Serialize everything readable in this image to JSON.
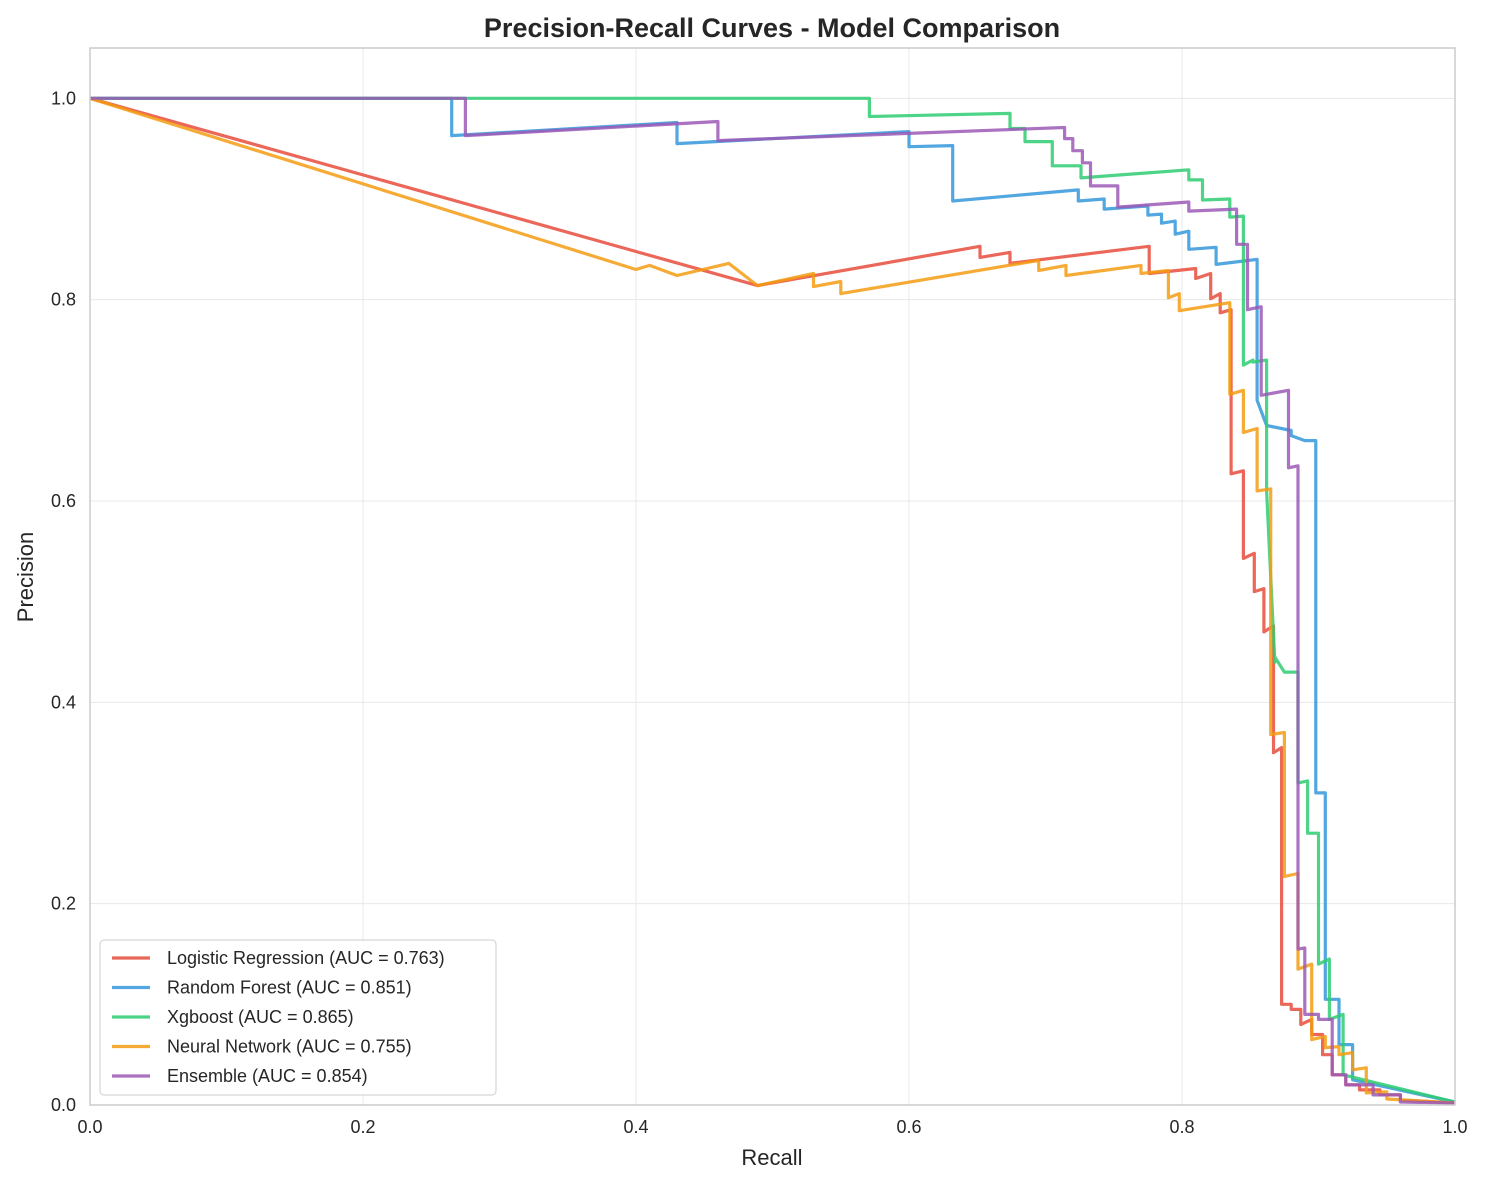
{
  "chart_data": {
    "type": "line",
    "title": "Precision-Recall Curves - Model Comparison",
    "xlabel": "Recall",
    "ylabel": "Precision",
    "xlim": [
      0,
      1
    ],
    "ylim": [
      0,
      1.05
    ],
    "xticks": [
      "0.0",
      "0.2",
      "0.4",
      "0.6",
      "0.8",
      "1.0"
    ],
    "yticks": [
      "0.0",
      "0.2",
      "0.4",
      "0.6",
      "0.8",
      "1.0"
    ],
    "xtick_values": [
      0,
      0.2,
      0.4,
      0.6,
      0.8,
      1.0
    ],
    "ytick_values": [
      0,
      0.2,
      0.4,
      0.6,
      0.8,
      1.0
    ],
    "grid": true,
    "legend_position": "lower-left",
    "series": [
      {
        "name": "Logistic Regression (AUC = 0.763)",
        "color": "#e74c3c",
        "x": [
          0,
          0.489,
          0.652,
          0.652,
          0.674,
          0.674,
          0.776,
          0.776,
          0.81,
          0.81,
          0.821,
          0.821,
          0.828,
          0.828,
          0.836,
          0.836,
          0.845,
          0.845,
          0.853,
          0.853,
          0.86,
          0.86,
          0.867,
          0.867,
          0.873,
          0.873,
          0.88,
          0.88,
          0.887,
          0.887,
          0.895,
          0.895,
          0.903,
          0.903,
          0.91,
          0.91,
          0.92,
          0.92,
          0.93,
          0.93,
          0.945,
          0.945,
          0.96,
          0.96,
          1.0
        ],
        "y": [
          1.0,
          0.814,
          0.853,
          0.842,
          0.847,
          0.836,
          0.853,
          0.826,
          0.831,
          0.821,
          0.826,
          0.801,
          0.806,
          0.787,
          0.79,
          0.627,
          0.63,
          0.543,
          0.548,
          0.51,
          0.513,
          0.47,
          0.476,
          0.35,
          0.355,
          0.1,
          0.1,
          0.095,
          0.095,
          0.08,
          0.085,
          0.07,
          0.07,
          0.05,
          0.05,
          0.03,
          0.03,
          0.02,
          0.02,
          0.015,
          0.015,
          0.01,
          0.01,
          0.005,
          0.002
        ]
      },
      {
        "name": "Random Forest (AUC = 0.851)",
        "color": "#3498db",
        "x": [
          0,
          0.265,
          0.265,
          0.43,
          0.43,
          0.6,
          0.6,
          0.632,
          0.632,
          0.724,
          0.724,
          0.743,
          0.743,
          0.775,
          0.775,
          0.785,
          0.785,
          0.795,
          0.795,
          0.805,
          0.805,
          0.825,
          0.825,
          0.855,
          0.855,
          0.862,
          0.862,
          0.88,
          0.88,
          0.89,
          0.89,
          0.898,
          0.898,
          0.905,
          0.905,
          0.915,
          0.915,
          0.925,
          0.925,
          1.0
        ],
        "y": [
          1.0,
          1.0,
          0.963,
          0.976,
          0.955,
          0.967,
          0.952,
          0.953,
          0.898,
          0.909,
          0.898,
          0.9,
          0.89,
          0.893,
          0.884,
          0.885,
          0.876,
          0.878,
          0.865,
          0.868,
          0.85,
          0.852,
          0.835,
          0.84,
          0.7,
          0.675,
          0.675,
          0.67,
          0.665,
          0.66,
          0.66,
          0.66,
          0.31,
          0.31,
          0.105,
          0.105,
          0.06,
          0.06,
          0.025,
          0.003
        ]
      },
      {
        "name": "Xgboost (AUC = 0.865)",
        "color": "#2ecc71",
        "x": [
          0,
          0.571,
          0.571,
          0.674,
          0.674,
          0.685,
          0.685,
          0.705,
          0.705,
          0.726,
          0.726,
          0.805,
          0.805,
          0.815,
          0.815,
          0.835,
          0.835,
          0.845,
          0.845,
          0.852,
          0.852,
          0.862,
          0.862,
          0.868,
          0.868,
          0.875,
          0.875,
          0.885,
          0.885,
          0.892,
          0.892,
          0.9,
          0.9,
          0.908,
          0.908,
          0.918,
          0.918,
          1.0
        ],
        "y": [
          1.0,
          1.0,
          0.982,
          0.985,
          0.97,
          0.97,
          0.957,
          0.957,
          0.933,
          0.933,
          0.921,
          0.929,
          0.919,
          0.919,
          0.899,
          0.9,
          0.882,
          0.883,
          0.735,
          0.74,
          0.738,
          0.74,
          0.61,
          0.44,
          0.445,
          0.43,
          0.43,
          0.43,
          0.32,
          0.322,
          0.27,
          0.27,
          0.14,
          0.145,
          0.085,
          0.09,
          0.03,
          0.003
        ]
      },
      {
        "name": "Neural Network (AUC = 0.755)",
        "color": "#f39c12",
        "x": [
          0,
          0.4,
          0.41,
          0.43,
          0.468,
          0.489,
          0.53,
          0.53,
          0.55,
          0.55,
          0.695,
          0.695,
          0.715,
          0.715,
          0.77,
          0.77,
          0.79,
          0.79,
          0.798,
          0.798,
          0.835,
          0.835,
          0.845,
          0.845,
          0.855,
          0.855,
          0.865,
          0.865,
          0.875,
          0.875,
          0.885,
          0.885,
          0.895,
          0.895,
          0.905,
          0.905,
          0.915,
          0.915,
          0.925,
          0.925,
          0.935,
          0.935,
          0.95,
          0.95,
          1.0
        ],
        "y": [
          1.0,
          0.83,
          0.834,
          0.824,
          0.836,
          0.814,
          0.826,
          0.813,
          0.818,
          0.806,
          0.839,
          0.829,
          0.834,
          0.824,
          0.834,
          0.826,
          0.829,
          0.802,
          0.806,
          0.789,
          0.797,
          0.706,
          0.71,
          0.668,
          0.672,
          0.61,
          0.612,
          0.368,
          0.37,
          0.227,
          0.23,
          0.135,
          0.14,
          0.065,
          0.068,
          0.057,
          0.058,
          0.05,
          0.052,
          0.035,
          0.037,
          0.012,
          0.013,
          0.006,
          0.002
        ]
      },
      {
        "name": "Ensemble (AUC = 0.854)",
        "color": "#9b59b6",
        "x": [
          0,
          0.275,
          0.275,
          0.46,
          0.46,
          0.714,
          0.714,
          0.72,
          0.72,
          0.727,
          0.727,
          0.733,
          0.733,
          0.753,
          0.753,
          0.805,
          0.805,
          0.84,
          0.84,
          0.848,
          0.848,
          0.858,
          0.858,
          0.878,
          0.878,
          0.885,
          0.885,
          0.89,
          0.89,
          0.9,
          0.9,
          0.91,
          0.91,
          0.92,
          0.92,
          0.94,
          0.94,
          0.96,
          0.96,
          1.0
        ],
        "y": [
          1.0,
          1.0,
          0.963,
          0.977,
          0.958,
          0.971,
          0.96,
          0.96,
          0.948,
          0.948,
          0.936,
          0.936,
          0.913,
          0.913,
          0.892,
          0.897,
          0.888,
          0.89,
          0.855,
          0.855,
          0.79,
          0.793,
          0.705,
          0.71,
          0.633,
          0.635,
          0.155,
          0.156,
          0.09,
          0.09,
          0.085,
          0.085,
          0.03,
          0.03,
          0.02,
          0.02,
          0.01,
          0.01,
          0.003,
          0.002
        ]
      }
    ]
  }
}
